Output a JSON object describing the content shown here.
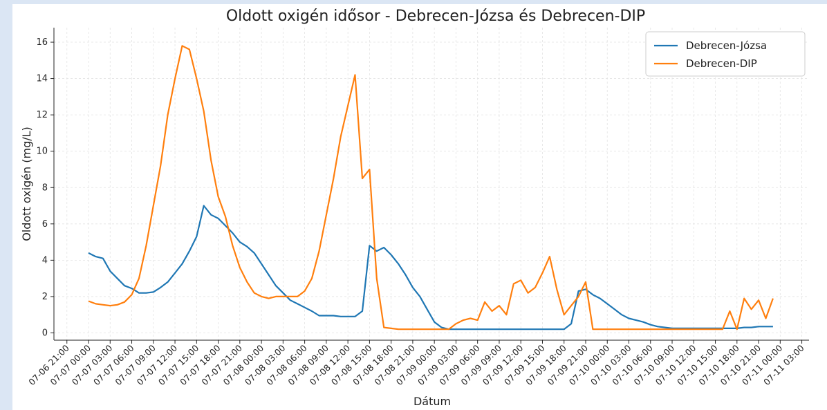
{
  "chart_data": {
    "type": "line",
    "title": "Oldott oxigén idősor - Debrecen-Józsa és Debrecen-DIP",
    "xlabel": "Dátum",
    "ylabel": "Oldott oxigén (mg/L)",
    "x": [
      "07-07 00:00",
      "07-07 01:00",
      "07-07 02:00",
      "07-07 03:00",
      "07-07 04:00",
      "07-07 05:00",
      "07-07 06:00",
      "07-07 07:00",
      "07-07 08:00",
      "07-07 09:00",
      "07-07 10:00",
      "07-07 11:00",
      "07-07 12:00",
      "07-07 13:00",
      "07-07 14:00",
      "07-07 15:00",
      "07-07 16:00",
      "07-07 17:00",
      "07-07 18:00",
      "07-07 19:00",
      "07-07 20:00",
      "07-07 21:00",
      "07-07 22:00",
      "07-07 23:00",
      "07-08 00:00",
      "07-08 01:00",
      "07-08 02:00",
      "07-08 03:00",
      "07-08 04:00",
      "07-08 05:00",
      "07-08 06:00",
      "07-08 07:00",
      "07-08 08:00",
      "07-08 09:00",
      "07-08 10:00",
      "07-08 11:00",
      "07-08 12:00",
      "07-08 13:00",
      "07-08 14:00",
      "07-08 15:00",
      "07-08 16:00",
      "07-08 17:00",
      "07-08 18:00",
      "07-08 19:00",
      "07-08 20:00",
      "07-08 21:00",
      "07-08 22:00",
      "07-08 23:00",
      "07-09 00:00",
      "07-09 01:00",
      "07-09 02:00",
      "07-09 03:00",
      "07-09 04:00",
      "07-09 05:00",
      "07-09 06:00",
      "07-09 07:00",
      "07-09 08:00",
      "07-09 09:00",
      "07-09 10:00",
      "07-09 11:00",
      "07-09 12:00",
      "07-09 13:00",
      "07-09 14:00",
      "07-09 15:00",
      "07-09 16:00",
      "07-09 17:00",
      "07-09 18:00",
      "07-09 19:00",
      "07-09 20:00",
      "07-09 21:00",
      "07-09 22:00",
      "07-09 23:00",
      "07-10 00:00",
      "07-10 01:00",
      "07-10 02:00",
      "07-10 03:00",
      "07-10 04:00",
      "07-10 05:00",
      "07-10 06:00",
      "07-10 07:00",
      "07-10 08:00",
      "07-10 09:00",
      "07-10 10:00",
      "07-10 11:00",
      "07-10 12:00",
      "07-10 13:00",
      "07-10 14:00",
      "07-10 15:00",
      "07-10 16:00",
      "07-10 17:00",
      "07-10 18:00",
      "07-10 19:00",
      "07-10 20:00",
      "07-10 21:00",
      "07-10 22:00",
      "07-10 23:00"
    ],
    "series": [
      {
        "name": "Debrecen-Józsa",
        "color": "#1f77b4",
        "values": [
          4.4,
          4.2,
          4.1,
          3.4,
          3.0,
          2.6,
          2.45,
          2.2,
          2.2,
          2.25,
          2.5,
          2.8,
          3.3,
          3.8,
          4.5,
          5.3,
          7.0,
          6.5,
          6.3,
          5.9,
          5.5,
          5.0,
          4.75,
          4.4,
          3.8,
          3.2,
          2.6,
          2.2,
          1.8,
          1.6,
          1.4,
          1.2,
          0.95,
          0.95,
          0.95,
          0.9,
          0.9,
          0.9,
          1.2,
          4.8,
          4.5,
          4.7,
          4.3,
          3.8,
          3.2,
          2.5,
          2.0,
          1.3,
          0.6,
          0.3,
          0.2,
          0.2,
          0.2,
          0.2,
          0.2,
          0.2,
          0.2,
          0.2,
          0.2,
          0.2,
          0.2,
          0.2,
          0.2,
          0.2,
          0.2,
          0.2,
          0.2,
          0.5,
          2.3,
          2.4,
          2.1,
          1.9,
          1.6,
          1.3,
          1.0,
          0.8,
          0.7,
          0.6,
          0.45,
          0.35,
          0.3,
          0.25,
          0.25,
          0.25,
          0.25,
          0.25,
          0.25,
          0.25,
          0.25,
          0.25,
          0.25,
          0.3,
          0.3,
          0.35,
          0.35,
          0.35
        ]
      },
      {
        "name": "Debrecen-DIP",
        "color": "#ff7f0e",
        "values": [
          1.75,
          1.6,
          1.55,
          1.5,
          1.55,
          1.7,
          2.1,
          3.0,
          4.8,
          7.0,
          9.2,
          12.0,
          14.0,
          15.8,
          15.6,
          14.0,
          12.2,
          9.5,
          7.5,
          6.4,
          4.8,
          3.6,
          2.8,
          2.2,
          2.0,
          1.9,
          2.0,
          2.0,
          2.0,
          2.0,
          2.3,
          3.0,
          4.5,
          6.5,
          8.5,
          10.8,
          12.5,
          14.2,
          8.5,
          9.0,
          3.0,
          0.3,
          0.25,
          0.2,
          0.2,
          0.2,
          0.2,
          0.2,
          0.2,
          0.2,
          0.2,
          0.5,
          0.7,
          0.8,
          0.7,
          1.7,
          1.2,
          1.5,
          1.0,
          2.7,
          2.9,
          2.2,
          2.5,
          3.3,
          4.2,
          2.4,
          1.0,
          1.5,
          2.0,
          2.8,
          0.2,
          0.2,
          0.2,
          0.2,
          0.2,
          0.2,
          0.2,
          0.2,
          0.2,
          0.2,
          0.2,
          0.2,
          0.2,
          0.2,
          0.2,
          0.2,
          0.2,
          0.2,
          0.2,
          1.2,
          0.2,
          1.9,
          1.3,
          1.8,
          0.8,
          1.9
        ]
      }
    ],
    "xlim": [
      "07-06 19:12",
      "07-11 04:00"
    ],
    "xticks": [
      "07-06 21:00",
      "07-07 00:00",
      "07-07 03:00",
      "07-07 06:00",
      "07-07 09:00",
      "07-07 12:00",
      "07-07 15:00",
      "07-07 18:00",
      "07-07 21:00",
      "07-08 00:00",
      "07-08 03:00",
      "07-08 06:00",
      "07-08 09:00",
      "07-08 12:00",
      "07-08 15:00",
      "07-08 18:00",
      "07-08 21:00",
      "07-09 00:00",
      "07-09 03:00",
      "07-09 06:00",
      "07-09 09:00",
      "07-09 12:00",
      "07-09 15:00",
      "07-09 18:00",
      "07-09 21:00",
      "07-10 00:00",
      "07-10 03:00",
      "07-10 06:00",
      "07-10 09:00",
      "07-10 12:00",
      "07-10 15:00",
      "07-10 18:00",
      "07-10 21:00",
      "07-11 00:00",
      "07-11 03:00"
    ],
    "ylim": [
      -0.4,
      16.8
    ],
    "yticks": [
      0,
      2,
      4,
      6,
      8,
      10,
      12,
      14,
      16
    ],
    "grid": true,
    "legend": "upper right"
  }
}
